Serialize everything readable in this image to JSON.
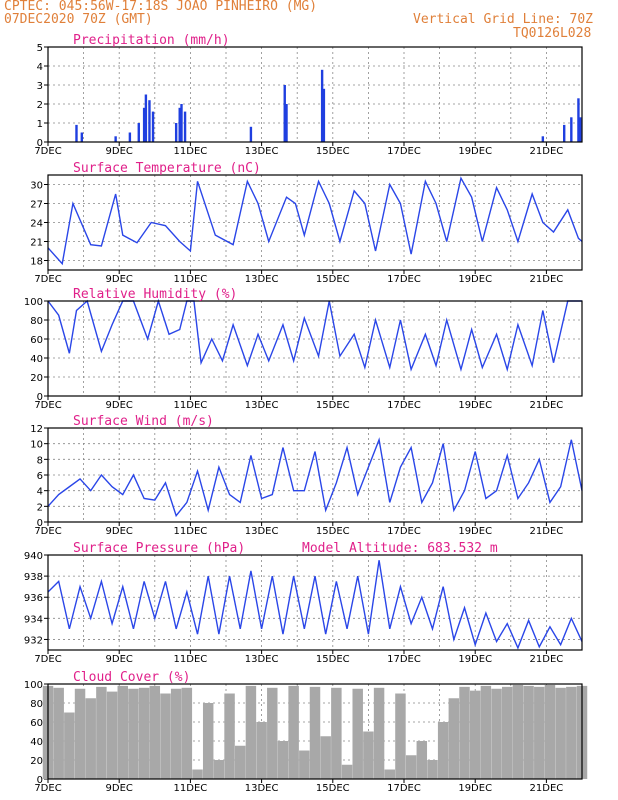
{
  "header": {
    "line1": "CPTEC:  045:56W-17:18S  JOAO PINHEIRO (MG)",
    "line2": "07DEC2020 70Z (GMT)",
    "grid_note": "Vertical Grid Line: 70Z",
    "code": "TQ0126L028"
  },
  "colors": {
    "line": "#2a46e8",
    "bar": "#1f3fe0",
    "cloud": "#a8a8a8",
    "title": "#e0208a",
    "header": "#e0803a"
  },
  "x_axis": {
    "labels": [
      "7DEC",
      "9DEC",
      "11DEC",
      "13DEC",
      "15DEC",
      "17DEC",
      "19DEC",
      "21DEC"
    ],
    "start_day": 7,
    "end_day": 22
  },
  "chart_data": [
    {
      "type": "bar",
      "id": "precip",
      "title": "Precipitation (mm/h)",
      "ylim": [
        0,
        5
      ],
      "yticks": [
        0,
        1,
        2,
        3,
        4,
        5
      ],
      "events": [
        [
          7.8,
          0.9
        ],
        [
          7.95,
          0.5
        ],
        [
          8.9,
          0.3
        ],
        [
          9.3,
          0.5
        ],
        [
          9.55,
          1.0
        ],
        [
          9.7,
          1.8
        ],
        [
          9.75,
          2.5
        ],
        [
          9.85,
          2.2
        ],
        [
          9.95,
          1.6
        ],
        [
          10.6,
          1.0
        ],
        [
          10.7,
          1.8
        ],
        [
          10.75,
          2.0
        ],
        [
          10.85,
          1.6
        ],
        [
          12.7,
          0.8
        ],
        [
          13.65,
          3.0
        ],
        [
          13.7,
          2.0
        ],
        [
          14.7,
          3.8
        ],
        [
          14.75,
          2.8
        ],
        [
          20.9,
          0.3
        ],
        [
          21.5,
          0.9
        ],
        [
          21.7,
          1.3
        ],
        [
          21.9,
          2.3
        ],
        [
          21.95,
          1.3
        ]
      ]
    },
    {
      "type": "line",
      "id": "temp",
      "title": "Surface Temperature (nC)",
      "ylim": [
        16.5,
        31.5
      ],
      "yticks": [
        18,
        21,
        24,
        27,
        30
      ],
      "x": [
        7.0,
        7.4,
        7.7,
        8.2,
        8.5,
        8.9,
        9.1,
        9.5,
        9.9,
        10.3,
        10.7,
        11.0,
        11.2,
        11.7,
        12.2,
        12.6,
        12.9,
        13.2,
        13.7,
        13.95,
        14.2,
        14.6,
        14.9,
        15.2,
        15.6,
        15.9,
        16.2,
        16.6,
        16.9,
        17.2,
        17.6,
        17.9,
        18.2,
        18.6,
        18.9,
        19.2,
        19.6,
        19.9,
        20.2,
        20.6,
        20.9,
        21.2,
        21.6,
        21.9,
        22.0
      ],
      "y": [
        20,
        17.5,
        27,
        20.5,
        20.3,
        28.5,
        22,
        20.8,
        24,
        23.5,
        21,
        19.5,
        30.5,
        22,
        20.5,
        30.5,
        27,
        21,
        28,
        27,
        22,
        30.5,
        27,
        21,
        29,
        27,
        19.5,
        30,
        27,
        19,
        30.5,
        27,
        21,
        31,
        28,
        21,
        29.5,
        26,
        21,
        28.5,
        24,
        22.5,
        26,
        21.5,
        21
      ]
    },
    {
      "type": "line",
      "id": "rh",
      "title": "Relative Humidity (%)",
      "ylim": [
        0,
        100
      ],
      "yticks": [
        0,
        20,
        40,
        60,
        80,
        100
      ],
      "x": [
        7.0,
        7.3,
        7.6,
        7.8,
        8.1,
        8.5,
        8.8,
        9.1,
        9.4,
        9.8,
        10.1,
        10.4,
        10.7,
        10.9,
        11.1,
        11.3,
        11.6,
        11.9,
        12.2,
        12.6,
        12.9,
        13.2,
        13.6,
        13.9,
        14.2,
        14.6,
        14.9,
        15.2,
        15.6,
        15.9,
        16.2,
        16.6,
        16.9,
        17.2,
        17.6,
        17.9,
        18.2,
        18.6,
        18.9,
        19.2,
        19.6,
        19.9,
        20.2,
        20.6,
        20.9,
        21.2,
        21.6,
        21.9,
        22.0
      ],
      "y": [
        100,
        85,
        45,
        90,
        100,
        47,
        75,
        100,
        100,
        60,
        100,
        65,
        70,
        100,
        100,
        35,
        60,
        37,
        75,
        32,
        65,
        37,
        75,
        37,
        82,
        42,
        100,
        42,
        65,
        30,
        80,
        30,
        80,
        28,
        65,
        32,
        80,
        28,
        70,
        30,
        65,
        28,
        75,
        32,
        90,
        35,
        100,
        100,
        100
      ]
    },
    {
      "type": "line",
      "id": "wind",
      "title": "Surface Wind (m/s)",
      "ylim": [
        0,
        12
      ],
      "yticks": [
        0,
        2,
        4,
        6,
        8,
        10,
        12
      ],
      "x": [
        7.0,
        7.3,
        7.6,
        7.9,
        8.2,
        8.5,
        8.8,
        9.1,
        9.4,
        9.7,
        10.0,
        10.3,
        10.6,
        10.9,
        11.2,
        11.5,
        11.8,
        12.1,
        12.4,
        12.7,
        13.0,
        13.3,
        13.6,
        13.9,
        14.2,
        14.5,
        14.8,
        15.1,
        15.4,
        15.7,
        16.0,
        16.3,
        16.6,
        16.9,
        17.2,
        17.5,
        17.8,
        18.1,
        18.4,
        18.7,
        19.0,
        19.3,
        19.6,
        19.9,
        20.2,
        20.5,
        20.8,
        21.1,
        21.4,
        21.7,
        22.0
      ],
      "y": [
        2,
        3.5,
        4.5,
        5.5,
        4,
        6,
        4.5,
        3.5,
        6,
        3,
        2.8,
        5,
        0.8,
        2.5,
        6.5,
        1.5,
        7,
        3.5,
        2.5,
        8.5,
        3,
        3.5,
        9.5,
        4,
        4,
        9,
        1.5,
        5,
        9.5,
        3.5,
        7,
        10.5,
        2.5,
        7,
        9.5,
        2.5,
        5,
        10,
        1.5,
        4,
        9,
        3,
        4,
        8.5,
        3,
        5,
        8,
        2.5,
        4.5,
        10.5,
        4
      ]
    },
    {
      "type": "line",
      "id": "pressure",
      "title": "Surface Pressure (hPa)",
      "model_altitude": "Model Altitude: 683.532 m",
      "ylim": [
        931,
        940
      ],
      "yticks": [
        932,
        934,
        936,
        938,
        940
      ],
      "x": [
        7.0,
        7.3,
        7.6,
        7.9,
        8.2,
        8.5,
        8.8,
        9.1,
        9.4,
        9.7,
        10.0,
        10.3,
        10.6,
        10.9,
        11.2,
        11.5,
        11.8,
        12.1,
        12.4,
        12.7,
        13.0,
        13.3,
        13.6,
        13.9,
        14.2,
        14.5,
        14.8,
        15.1,
        15.4,
        15.7,
        16.0,
        16.3,
        16.6,
        16.9,
        17.2,
        17.5,
        17.8,
        18.1,
        18.4,
        18.7,
        19.0,
        19.3,
        19.6,
        19.9,
        20.2,
        20.5,
        20.8,
        21.1,
        21.4,
        21.7,
        22.0
      ],
      "y": [
        936.5,
        937.5,
        933,
        937,
        934,
        937.5,
        933.5,
        937,
        933,
        937.5,
        934,
        937.5,
        933,
        936.5,
        932.5,
        938,
        932.5,
        938,
        933,
        938.5,
        933,
        938,
        932.5,
        938,
        933,
        938,
        932.5,
        937.5,
        933,
        938,
        932.5,
        939.5,
        933,
        937,
        933.5,
        936,
        933,
        937,
        932,
        935,
        931.5,
        934.5,
        931.8,
        933.5,
        931.2,
        933.8,
        931.3,
        933.2,
        931.5,
        934,
        931.8
      ]
    },
    {
      "type": "bar",
      "id": "cloud",
      "title": "Cloud Cover (%)",
      "ylim": [
        0,
        100
      ],
      "yticks": [
        0,
        20,
        40,
        60,
        80,
        100
      ],
      "x": [
        7.0,
        7.3,
        7.6,
        7.9,
        8.2,
        8.5,
        8.8,
        9.1,
        9.4,
        9.7,
        10.0,
        10.3,
        10.6,
        10.9,
        11.2,
        11.5,
        11.8,
        12.1,
        12.4,
        12.7,
        13.0,
        13.3,
        13.6,
        13.9,
        14.2,
        14.5,
        14.8,
        15.1,
        15.4,
        15.7,
        16.0,
        16.3,
        16.6,
        16.9,
        17.2,
        17.5,
        17.8,
        18.1,
        18.4,
        18.7,
        19.0,
        19.3,
        19.6,
        19.9,
        20.2,
        20.5,
        20.8,
        21.1,
        21.4,
        21.7,
        22.0
      ],
      "y": [
        98,
        96,
        70,
        95,
        85,
        97,
        92,
        98,
        95,
        96,
        98,
        90,
        95,
        96,
        10,
        80,
        20,
        90,
        35,
        98,
        60,
        96,
        40,
        98,
        30,
        97,
        45,
        96,
        15,
        95,
        50,
        96,
        10,
        90,
        25,
        40,
        20,
        60,
        85,
        97,
        93,
        98,
        95,
        97,
        99,
        98,
        97,
        99,
        96,
        97,
        98
      ]
    }
  ]
}
